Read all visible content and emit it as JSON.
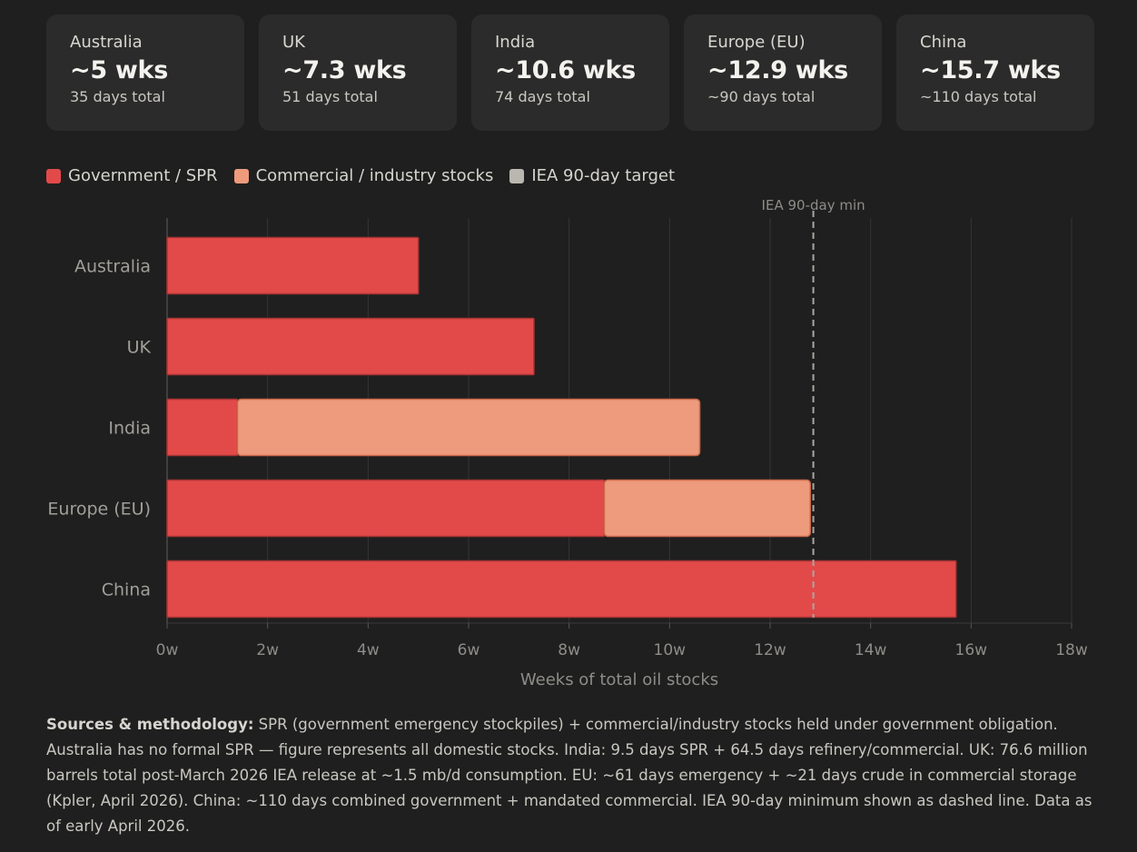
{
  "cards": [
    {
      "name": "Australia",
      "value": "~5 wks",
      "sub": "35 days total"
    },
    {
      "name": "UK",
      "value": "~7.3 wks",
      "sub": "51 days total"
    },
    {
      "name": "India",
      "value": "~10.6 wks",
      "sub": "74 days total"
    },
    {
      "name": "Europe (EU)",
      "value": "~12.9 wks",
      "sub": "~90 days total"
    },
    {
      "name": "China",
      "value": "~15.7 wks",
      "sub": "~110 days total"
    }
  ],
  "legend": [
    {
      "label": "Government / SPR",
      "color": "#e24a4a"
    },
    {
      "label": "Commercial / industry stocks",
      "color": "#ee9a7c"
    },
    {
      "label": "IEA 90-day target",
      "color": "#b9b7b0"
    }
  ],
  "chart_data": {
    "type": "bar",
    "orientation": "horizontal",
    "stacked": true,
    "categories": [
      "Australia",
      "UK",
      "India",
      "Europe (EU)",
      "China"
    ],
    "series": [
      {
        "name": "Government / SPR",
        "color": "#e24a4a",
        "values": [
          5.0,
          7.3,
          1.4,
          8.7,
          15.7
        ]
      },
      {
        "name": "Commercial / industry stocks",
        "color": "#ee9a7c",
        "values": [
          0,
          0,
          9.2,
          4.1,
          0
        ]
      }
    ],
    "xlim": [
      0,
      18
    ],
    "xticks": [
      0,
      2,
      4,
      6,
      8,
      10,
      12,
      14,
      16,
      18
    ],
    "tick_suffix": "w",
    "xlabel": "Weeks of total oil stocks",
    "reference_line": {
      "value": 12.86,
      "label": "IEA 90-day min"
    },
    "grid": true
  },
  "notes": {
    "heading": "Sources & methodology:",
    "text": " SPR (government emergency stockpiles) + commercial/industry stocks held under government obligation. Australia has no formal SPR — figure represents all domestic stocks. India: 9.5 days SPR + 64.5 days refinery/commercial. UK: 76.6 million barrels total post-March 2026 IEA release at ~1.5 mb/d consumption. EU: ~61 days emergency + ~21 days crude in commercial storage (Kpler, April 2026). China: ~110 days combined government + mandated commercial. IEA 90-day minimum shown as dashed line. Data as of early April 2026."
  }
}
